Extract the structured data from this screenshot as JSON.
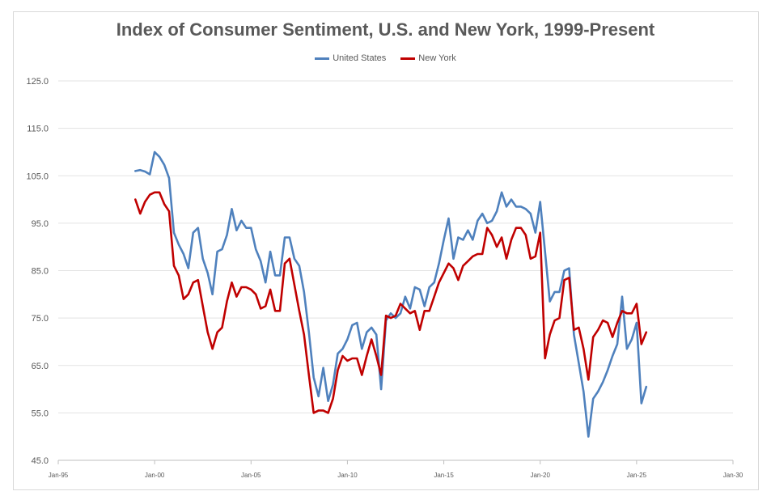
{
  "chart_data": {
    "type": "line",
    "title": "Index of Consumer Sentiment, U.S. and New York, 1999-Present",
    "xlabel": "",
    "ylabel": "",
    "ylim": [
      45,
      125
    ],
    "yticks": [
      "45.0",
      "55.0",
      "65.0",
      "75.0",
      "85.0",
      "95.0",
      "105.0",
      "115.0",
      "125.0"
    ],
    "xticks": [
      "Jan-95",
      "Jan-00",
      "Jan-05",
      "Jan-10",
      "Jan-15",
      "Jan-20",
      "Jan-25",
      "Jan-30"
    ],
    "xlim": [
      "1995-01",
      "2030-01"
    ],
    "grid": "horizontal",
    "legend_position": "top-center",
    "series": [
      {
        "name": "United States",
        "color": "#4f81bd",
        "points": [
          [
            "1999-01",
            106.0
          ],
          [
            "1999-04",
            106.2
          ],
          [
            "1999-07",
            105.9
          ],
          [
            "1999-10",
            105.3
          ],
          [
            "2000-01",
            110.0
          ],
          [
            "2000-04",
            109.0
          ],
          [
            "2000-07",
            107.3
          ],
          [
            "2000-10",
            104.5
          ],
          [
            "2001-01",
            93.0
          ],
          [
            "2001-04",
            90.5
          ],
          [
            "2001-07",
            88.5
          ],
          [
            "2001-10",
            85.5
          ],
          [
            "2002-01",
            93.0
          ],
          [
            "2002-04",
            94.0
          ],
          [
            "2002-07",
            87.5
          ],
          [
            "2002-10",
            84.5
          ],
          [
            "2003-01",
            80.0
          ],
          [
            "2003-04",
            89.0
          ],
          [
            "2003-07",
            89.5
          ],
          [
            "2003-10",
            92.5
          ],
          [
            "2004-01",
            98.0
          ],
          [
            "2004-04",
            93.5
          ],
          [
            "2004-07",
            95.5
          ],
          [
            "2004-10",
            94.0
          ],
          [
            "2005-01",
            94.0
          ],
          [
            "2005-04",
            89.5
          ],
          [
            "2005-07",
            87.0
          ],
          [
            "2005-10",
            82.5
          ],
          [
            "2006-01",
            89.0
          ],
          [
            "2006-04",
            84.0
          ],
          [
            "2006-07",
            84.0
          ],
          [
            "2006-10",
            92.0
          ],
          [
            "2007-01",
            92.0
          ],
          [
            "2007-04",
            87.5
          ],
          [
            "2007-07",
            86.0
          ],
          [
            "2007-10",
            80.5
          ],
          [
            "2008-01",
            72.0
          ],
          [
            "2008-04",
            62.5
          ],
          [
            "2008-07",
            58.5
          ],
          [
            "2008-10",
            64.5
          ],
          [
            "2009-01",
            57.5
          ],
          [
            "2009-04",
            61.0
          ],
          [
            "2009-07",
            67.5
          ],
          [
            "2009-10",
            68.5
          ],
          [
            "2010-01",
            70.5
          ],
          [
            "2010-04",
            73.5
          ],
          [
            "2010-07",
            74.0
          ],
          [
            "2010-10",
            68.5
          ],
          [
            "2011-01",
            72.0
          ],
          [
            "2011-04",
            73.0
          ],
          [
            "2011-07",
            71.5
          ],
          [
            "2011-10",
            60.0
          ],
          [
            "2012-01",
            74.5
          ],
          [
            "2012-04",
            76.0
          ],
          [
            "2012-07",
            75.0
          ],
          [
            "2012-10",
            76.0
          ],
          [
            "2013-01",
            79.5
          ],
          [
            "2013-04",
            77.0
          ],
          [
            "2013-07",
            81.5
          ],
          [
            "2013-10",
            81.0
          ],
          [
            "2014-01",
            77.5
          ],
          [
            "2014-04",
            81.5
          ],
          [
            "2014-07",
            82.5
          ],
          [
            "2014-10",
            86.5
          ],
          [
            "2015-01",
            91.5
          ],
          [
            "2015-04",
            96.0
          ],
          [
            "2015-07",
            87.5
          ],
          [
            "2015-10",
            92.0
          ],
          [
            "2016-01",
            91.5
          ],
          [
            "2016-04",
            93.5
          ],
          [
            "2016-07",
            91.5
          ],
          [
            "2016-10",
            95.5
          ],
          [
            "2017-01",
            97.0
          ],
          [
            "2017-04",
            95.0
          ],
          [
            "2017-07",
            95.5
          ],
          [
            "2017-10",
            97.5
          ],
          [
            "2018-01",
            101.5
          ],
          [
            "2018-04",
            98.5
          ],
          [
            "2018-07",
            100.0
          ],
          [
            "2018-10",
            98.5
          ],
          [
            "2019-01",
            98.5
          ],
          [
            "2019-04",
            98.0
          ],
          [
            "2019-07",
            97.0
          ],
          [
            "2019-10",
            93.0
          ],
          [
            "2020-01",
            99.5
          ],
          [
            "2020-04",
            89.0
          ],
          [
            "2020-07",
            78.5
          ],
          [
            "2020-10",
            80.5
          ],
          [
            "2021-01",
            80.5
          ],
          [
            "2021-04",
            85.0
          ],
          [
            "2021-07",
            85.5
          ],
          [
            "2021-10",
            71.5
          ],
          [
            "2022-01",
            65.5
          ],
          [
            "2022-04",
            59.5
          ],
          [
            "2022-07",
            50.0
          ],
          [
            "2022-10",
            58.0
          ],
          [
            "2023-01",
            59.5
          ],
          [
            "2023-04",
            61.5
          ],
          [
            "2023-07",
            64.0
          ],
          [
            "2023-10",
            67.0
          ],
          [
            "2024-01",
            69.5
          ],
          [
            "2024-04",
            79.5
          ],
          [
            "2024-07",
            68.5
          ],
          [
            "2024-10",
            70.5
          ],
          [
            "2025-01",
            74.0
          ],
          [
            "2025-04",
            57.0
          ],
          [
            "2025-07",
            60.5
          ]
        ]
      },
      {
        "name": "New York",
        "color": "#c00000",
        "points": [
          [
            "1999-01",
            100.0
          ],
          [
            "1999-04",
            97.0
          ],
          [
            "1999-07",
            99.5
          ],
          [
            "1999-10",
            101.0
          ],
          [
            "2000-01",
            101.5
          ],
          [
            "2000-04",
            101.5
          ],
          [
            "2000-07",
            99.0
          ],
          [
            "2000-10",
            97.5
          ],
          [
            "2001-01",
            86.0
          ],
          [
            "2001-04",
            84.0
          ],
          [
            "2001-07",
            79.0
          ],
          [
            "2001-10",
            80.0
          ],
          [
            "2002-01",
            82.5
          ],
          [
            "2002-04",
            83.0
          ],
          [
            "2002-07",
            77.5
          ],
          [
            "2002-10",
            72.0
          ],
          [
            "2003-01",
            68.5
          ],
          [
            "2003-04",
            72.0
          ],
          [
            "2003-07",
            73.0
          ],
          [
            "2003-10",
            78.5
          ],
          [
            "2004-01",
            82.5
          ],
          [
            "2004-04",
            79.5
          ],
          [
            "2004-07",
            81.5
          ],
          [
            "2004-10",
            81.5
          ],
          [
            "2005-01",
            81.0
          ],
          [
            "2005-04",
            80.0
          ],
          [
            "2005-07",
            77.0
          ],
          [
            "2005-10",
            77.5
          ],
          [
            "2006-01",
            81.0
          ],
          [
            "2006-04",
            76.5
          ],
          [
            "2006-07",
            76.5
          ],
          [
            "2006-10",
            86.5
          ],
          [
            "2007-01",
            87.5
          ],
          [
            "2007-04",
            82.0
          ],
          [
            "2007-07",
            76.5
          ],
          [
            "2007-10",
            71.5
          ],
          [
            "2008-01",
            63.0
          ],
          [
            "2008-04",
            55.0
          ],
          [
            "2008-07",
            55.5
          ],
          [
            "2008-10",
            55.5
          ],
          [
            "2009-01",
            55.0
          ],
          [
            "2009-04",
            58.0
          ],
          [
            "2009-07",
            64.0
          ],
          [
            "2009-10",
            67.0
          ],
          [
            "2010-01",
            66.0
          ],
          [
            "2010-04",
            66.5
          ],
          [
            "2010-07",
            66.5
          ],
          [
            "2010-10",
            63.0
          ],
          [
            "2011-01",
            67.0
          ],
          [
            "2011-04",
            70.5
          ],
          [
            "2011-07",
            67.0
          ],
          [
            "2011-10",
            63.0
          ],
          [
            "2012-01",
            75.5
          ],
          [
            "2012-04",
            75.0
          ],
          [
            "2012-07",
            75.5
          ],
          [
            "2012-10",
            78.0
          ],
          [
            "2013-01",
            77.0
          ],
          [
            "2013-04",
            76.0
          ],
          [
            "2013-07",
            76.5
          ],
          [
            "2013-10",
            72.5
          ],
          [
            "2014-01",
            76.5
          ],
          [
            "2014-04",
            76.5
          ],
          [
            "2014-07",
            79.5
          ],
          [
            "2014-10",
            82.5
          ],
          [
            "2015-01",
            84.5
          ],
          [
            "2015-04",
            86.5
          ],
          [
            "2015-07",
            85.5
          ],
          [
            "2015-10",
            83.0
          ],
          [
            "2016-01",
            86.0
          ],
          [
            "2016-04",
            87.0
          ],
          [
            "2016-07",
            88.0
          ],
          [
            "2016-10",
            88.5
          ],
          [
            "2017-01",
            88.5
          ],
          [
            "2017-04",
            94.0
          ],
          [
            "2017-07",
            92.5
          ],
          [
            "2017-10",
            90.0
          ],
          [
            "2018-01",
            92.0
          ],
          [
            "2018-04",
            87.5
          ],
          [
            "2018-07",
            91.5
          ],
          [
            "2018-10",
            94.0
          ],
          [
            "2019-01",
            94.0
          ],
          [
            "2019-04",
            92.5
          ],
          [
            "2019-07",
            87.5
          ],
          [
            "2019-10",
            88.0
          ],
          [
            "2020-01",
            93.0
          ],
          [
            "2020-04",
            66.5
          ],
          [
            "2020-07",
            71.5
          ],
          [
            "2020-10",
            74.5
          ],
          [
            "2021-01",
            75.0
          ],
          [
            "2021-04",
            83.0
          ],
          [
            "2021-07",
            83.5
          ],
          [
            "2021-10",
            72.5
          ],
          [
            "2022-01",
            73.0
          ],
          [
            "2022-04",
            68.5
          ],
          [
            "2022-07",
            62.0
          ],
          [
            "2022-10",
            71.0
          ],
          [
            "2023-01",
            72.5
          ],
          [
            "2023-04",
            74.5
          ],
          [
            "2023-07",
            74.0
          ],
          [
            "2023-10",
            71.0
          ],
          [
            "2024-01",
            74.0
          ],
          [
            "2024-04",
            76.5
          ],
          [
            "2024-07",
            76.0
          ],
          [
            "2024-10",
            76.0
          ],
          [
            "2025-01",
            78.0
          ],
          [
            "2025-04",
            69.5
          ],
          [
            "2025-07",
            72.0
          ]
        ]
      }
    ]
  }
}
